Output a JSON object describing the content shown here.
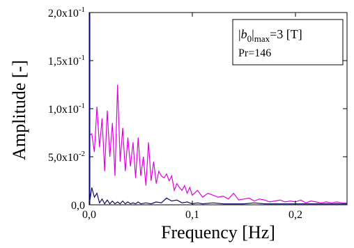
{
  "chart_data": {
    "type": "line",
    "title": "",
    "xlabel": "Frequency [Hz]",
    "ylabel": "Amplitude [-]",
    "xlim": [
      0,
      0.25
    ],
    "ylim": [
      0,
      0.2
    ],
    "grid": false,
    "x_ticks": [
      {
        "value": 0,
        "label": "0,0"
      },
      {
        "value": 0.1,
        "label": "0,1"
      },
      {
        "value": 0.2,
        "label": "0,2"
      }
    ],
    "y_ticks": [
      {
        "value": 0,
        "label": "0,0",
        "mantissa": "0,0",
        "exponent": ""
      },
      {
        "value": 0.05,
        "label": "5,0x10-2",
        "mantissa": "5,0x10",
        "exponent": "-2"
      },
      {
        "value": 0.1,
        "label": "1,0x10-1",
        "mantissa": "1,0x10",
        "exponent": "-1"
      },
      {
        "value": 0.15,
        "label": "1,5x10-1",
        "mantissa": "1,5x10",
        "exponent": "-1"
      },
      {
        "value": 0.2,
        "label": "2,0x10-1",
        "mantissa": "2,0x10",
        "exponent": "-1"
      }
    ],
    "legend": {
      "position": "top-right",
      "line1": {
        "var": "b",
        "sub0": "0",
        "bars": "|",
        "sub_max": "max",
        "rest": "=3 [T]"
      },
      "line2": "Pr=146"
    },
    "series": [
      {
        "color": "#e000e0",
        "x": [
          0.0,
          0.0025,
          0.005,
          0.0075,
          0.01,
          0.0125,
          0.015,
          0.0175,
          0.02,
          0.0225,
          0.025,
          0.0275,
          0.03,
          0.0325,
          0.035,
          0.0375,
          0.04,
          0.0425,
          0.045,
          0.0475,
          0.05,
          0.0525,
          0.055,
          0.0575,
          0.06,
          0.0625,
          0.065,
          0.0675,
          0.07,
          0.0725,
          0.075,
          0.0775,
          0.08,
          0.0825,
          0.085,
          0.0875,
          0.09,
          0.0925,
          0.095,
          0.0975,
          0.1,
          0.105,
          0.11,
          0.115,
          0.12,
          0.125,
          0.13,
          0.135,
          0.14,
          0.145,
          0.15,
          0.155,
          0.16,
          0.165,
          0.17,
          0.175,
          0.18,
          0.185,
          0.19,
          0.195,
          0.2,
          0.205,
          0.21,
          0.215,
          0.22,
          0.225,
          0.23,
          0.235,
          0.24,
          0.245,
          0.25
        ],
        "y": [
          0.072,
          0.074,
          0.055,
          0.102,
          0.06,
          0.09,
          0.035,
          0.098,
          0.05,
          0.085,
          0.03,
          0.125,
          0.045,
          0.08,
          0.035,
          0.07,
          0.04,
          0.065,
          0.028,
          0.07,
          0.03,
          0.05,
          0.02,
          0.065,
          0.025,
          0.045,
          0.022,
          0.035,
          0.03,
          0.028,
          0.032,
          0.025,
          0.03,
          0.015,
          0.022,
          0.018,
          0.015,
          0.02,
          0.012,
          0.018,
          0.01,
          0.015,
          0.008,
          0.012,
          0.01,
          0.008,
          0.009,
          0.006,
          0.012,
          0.005,
          0.006,
          0.007,
          0.004,
          0.006,
          0.005,
          0.003,
          0.004,
          0.005,
          0.003,
          0.004,
          0.003,
          0.005,
          0.002,
          0.004,
          0.003,
          0.002,
          0.003,
          0.002,
          0.003,
          0.002,
          0.002
        ]
      },
      {
        "color": "#101060",
        "x": [
          0.0,
          0.0025,
          0.005,
          0.0075,
          0.01,
          0.0125,
          0.015,
          0.0175,
          0.02,
          0.0225,
          0.025,
          0.0275,
          0.03,
          0.0325,
          0.035,
          0.0375,
          0.04,
          0.0425,
          0.045,
          0.0475,
          0.05,
          0.055,
          0.06,
          0.065,
          0.07,
          0.075,
          0.08,
          0.085,
          0.09,
          0.095,
          0.1,
          0.105,
          0.11,
          0.12,
          0.13,
          0.14,
          0.15,
          0.16,
          0.17,
          0.18,
          0.19,
          0.2,
          0.21,
          0.22,
          0.23,
          0.24,
          0.25
        ],
        "y": [
          0.0,
          0.018,
          0.008,
          0.012,
          0.002,
          0.006,
          0.001,
          0.005,
          0.001,
          0.004,
          0.001,
          0.003,
          0.001,
          0.004,
          0.001,
          0.003,
          0.001,
          0.002,
          0.001,
          0.003,
          0.001,
          0.002,
          0.001,
          0.003,
          0.002,
          0.007,
          0.004,
          0.005,
          0.002,
          0.003,
          0.001,
          0.002,
          0.001,
          0.002,
          0.001,
          0.001,
          0.001,
          0.002,
          0.001,
          0.001,
          0.001,
          0.001,
          0.001,
          0.001,
          0.001,
          0.001,
          0.001
        ]
      }
    ]
  }
}
